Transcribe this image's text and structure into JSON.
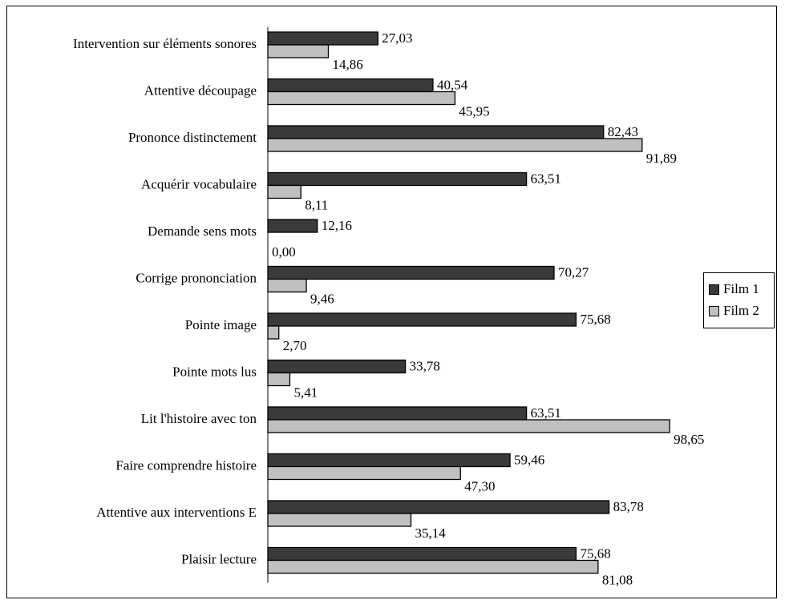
{
  "chart_data": {
    "type": "bar",
    "orientation": "horizontal",
    "categories": [
      "Intervention sur éléments sonores",
      "Attentive découpage",
      "Prononce distinctement",
      "Acquérir vocabulaire",
      "Demande sens mots",
      "Corrige prononciation",
      "Pointe image",
      "Pointe mots lus",
      "Lit l'histoire avec ton",
      "Faire comprendre histoire",
      "Attentive aux interventions E",
      "Plaisir lecture"
    ],
    "series": [
      {
        "name": "Film 1",
        "color": "#3a3a3a",
        "values": [
          27.03,
          40.54,
          82.43,
          63.51,
          12.16,
          70.27,
          75.68,
          33.78,
          63.51,
          59.46,
          83.78,
          75.68
        ],
        "labels": [
          "27,03",
          "40,54",
          "82,43",
          "63,51",
          "12,16",
          "70,27",
          "75,68",
          "33,78",
          "63,51",
          "59,46",
          "83,78",
          "75,68"
        ]
      },
      {
        "name": "Film 2",
        "color": "#c0c0c0",
        "values": [
          14.86,
          45.95,
          91.89,
          8.11,
          0.0,
          9.46,
          2.7,
          5.41,
          98.65,
          47.3,
          35.14,
          81.08
        ],
        "labels": [
          "14,86",
          "45,95",
          "91,89",
          "8,11",
          "0,00",
          "9,46",
          "2,70",
          "5,41",
          "98,65",
          "47,30",
          "35,14",
          "81,08"
        ]
      }
    ],
    "xlim": [
      0,
      100
    ],
    "grid": false,
    "legend_position": "right"
  }
}
